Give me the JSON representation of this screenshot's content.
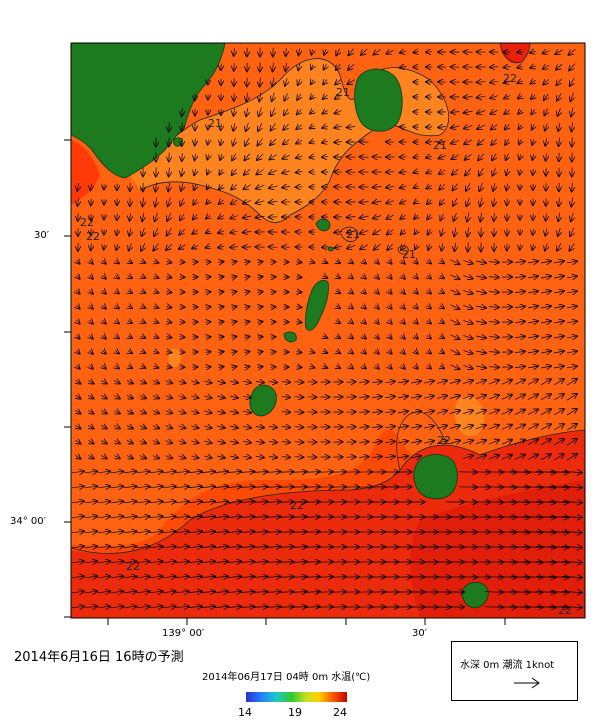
{
  "map": {
    "axis_labels": {
      "lat_30": "30′",
      "lat_34": "34° 00′",
      "lon_139": "139° 00′",
      "lon_30": "30′"
    },
    "contour_labels": [
      "21",
      "21",
      "21",
      "21",
      "21",
      "22",
      "22",
      "22",
      "22",
      "22",
      "22",
      "22"
    ],
    "colors": {
      "sea_warm": "#ff4400",
      "sea_mid": "#ff6a10",
      "sea_cool": "#ff8c1e",
      "sea_hot": "#e8200c",
      "land": "#1e7a1e"
    }
  },
  "title": {
    "main": "2014年6月16日 16時の予測",
    "sub": "2014年06月17日 04時 0m 水温(℃)"
  },
  "legend": {
    "label": "水深 0m 潮流 1knot"
  },
  "colorbar": {
    "min": "14",
    "mid": "19",
    "max": "24"
  }
}
